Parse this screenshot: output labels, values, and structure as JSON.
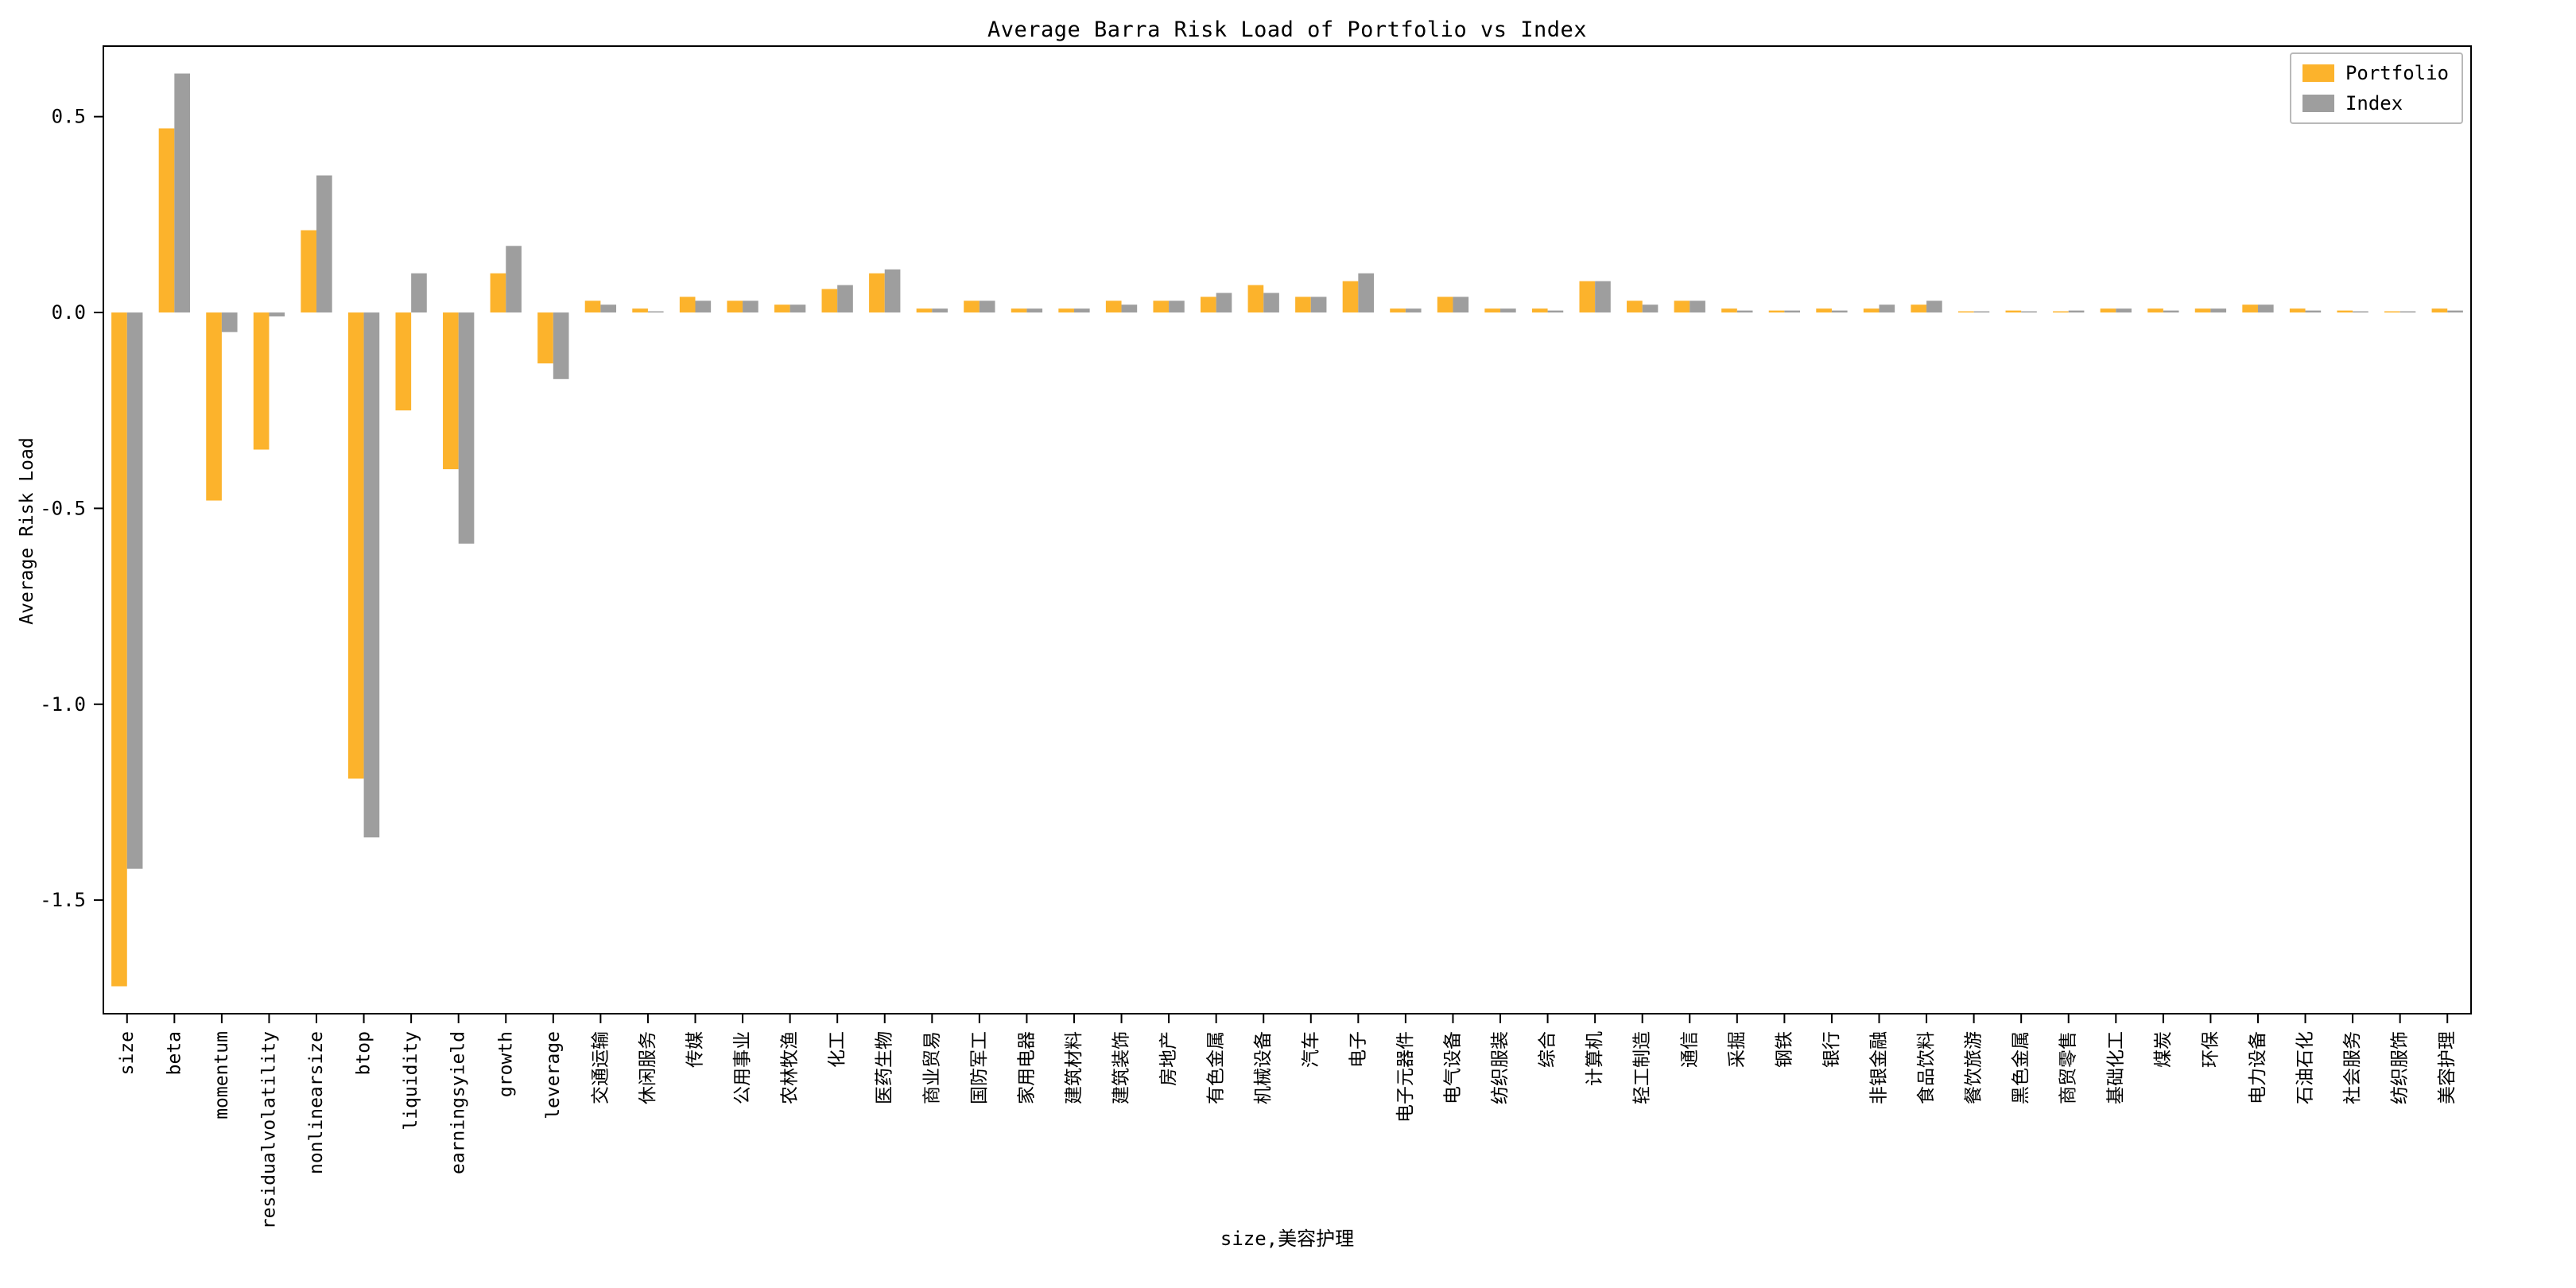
{
  "figure": {
    "background": "#ffffff",
    "axis_color": "#000000"
  },
  "legend": {
    "position": "upper right",
    "items": [
      {
        "label": "Portfolio",
        "color": "#FCB32C"
      },
      {
        "label": "Index",
        "color": "#9E9E9E"
      }
    ]
  },
  "chart_data": {
    "type": "bar",
    "title": "Average Barra Risk Load of Portfolio vs Index",
    "xlabel": "size,美容护理",
    "ylabel": "Average Risk Load",
    "grid": false,
    "legend_position": "upper right",
    "ylim": [
      -1.79,
      0.68
    ],
    "yticks": [
      {
        "v": 0.5,
        "label": "0.5"
      },
      {
        "v": 0.0,
        "label": "0.0"
      },
      {
        "v": -0.5,
        "label": "-0.5"
      },
      {
        "v": -1.0,
        "label": "-1.0"
      },
      {
        "v": -1.5,
        "label": "-1.5"
      }
    ],
    "categories": [
      "size",
      "beta",
      "momentum",
      "residualvolatility",
      "nonlinearsize",
      "btop",
      "liquidity",
      "earningsyield",
      "growth",
      "leverage",
      "交通运输",
      "休闲服务",
      "传媒",
      "公用事业",
      "农林牧渔",
      "化工",
      "医药生物",
      "商业贸易",
      "国防军工",
      "家用电器",
      "建筑材料",
      "建筑装饰",
      "房地产",
      "有色金属",
      "机械设备",
      "汽车",
      "电子",
      "电子元器件",
      "电气设备",
      "纺织服装",
      "综合",
      "计算机",
      "轻工制造",
      "通信",
      "采掘",
      "钢铁",
      "银行",
      "非银金融",
      "食品饮料",
      "餐饮旅游",
      "黑色金属",
      "商贸零售",
      "基础化工",
      "煤炭",
      "环保",
      "电力设备",
      "石油石化",
      "社会服务",
      "纺织服饰",
      "美容护理"
    ],
    "series": [
      {
        "name": "Portfolio",
        "color": "#FCB32C",
        "values": [
          -1.72,
          0.47,
          -0.48,
          -0.35,
          0.21,
          -1.19,
          -0.25,
          -0.4,
          0.1,
          -0.13,
          0.03,
          0.01,
          0.04,
          0.03,
          0.02,
          0.06,
          0.1,
          0.01,
          0.03,
          0.01,
          0.01,
          0.03,
          0.03,
          0.04,
          0.07,
          0.04,
          0.08,
          0.01,
          0.04,
          0.01,
          0.01,
          0.08,
          0.03,
          0.03,
          0.01,
          0.005,
          0.01,
          0.01,
          0.02,
          0.002,
          0.005,
          0.003,
          0.01,
          0.01,
          0.01,
          0.02,
          0.01,
          0.005,
          0.003,
          0.01
        ]
      },
      {
        "name": "Index",
        "color": "#9E9E9E",
        "values": [
          -1.42,
          0.61,
          -0.05,
          -0.01,
          0.35,
          -1.34,
          0.1,
          -0.59,
          0.17,
          -0.17,
          0.02,
          0.002,
          0.03,
          0.03,
          0.02,
          0.07,
          0.11,
          0.01,
          0.03,
          0.01,
          0.01,
          0.02,
          0.03,
          0.05,
          0.05,
          0.04,
          0.1,
          0.01,
          0.04,
          0.01,
          0.005,
          0.08,
          0.02,
          0.03,
          0.005,
          0.005,
          0.005,
          0.02,
          0.03,
          0.002,
          0.002,
          0.005,
          0.01,
          0.005,
          0.01,
          0.02,
          0.005,
          0.002,
          0.002,
          0.005
        ]
      }
    ]
  }
}
